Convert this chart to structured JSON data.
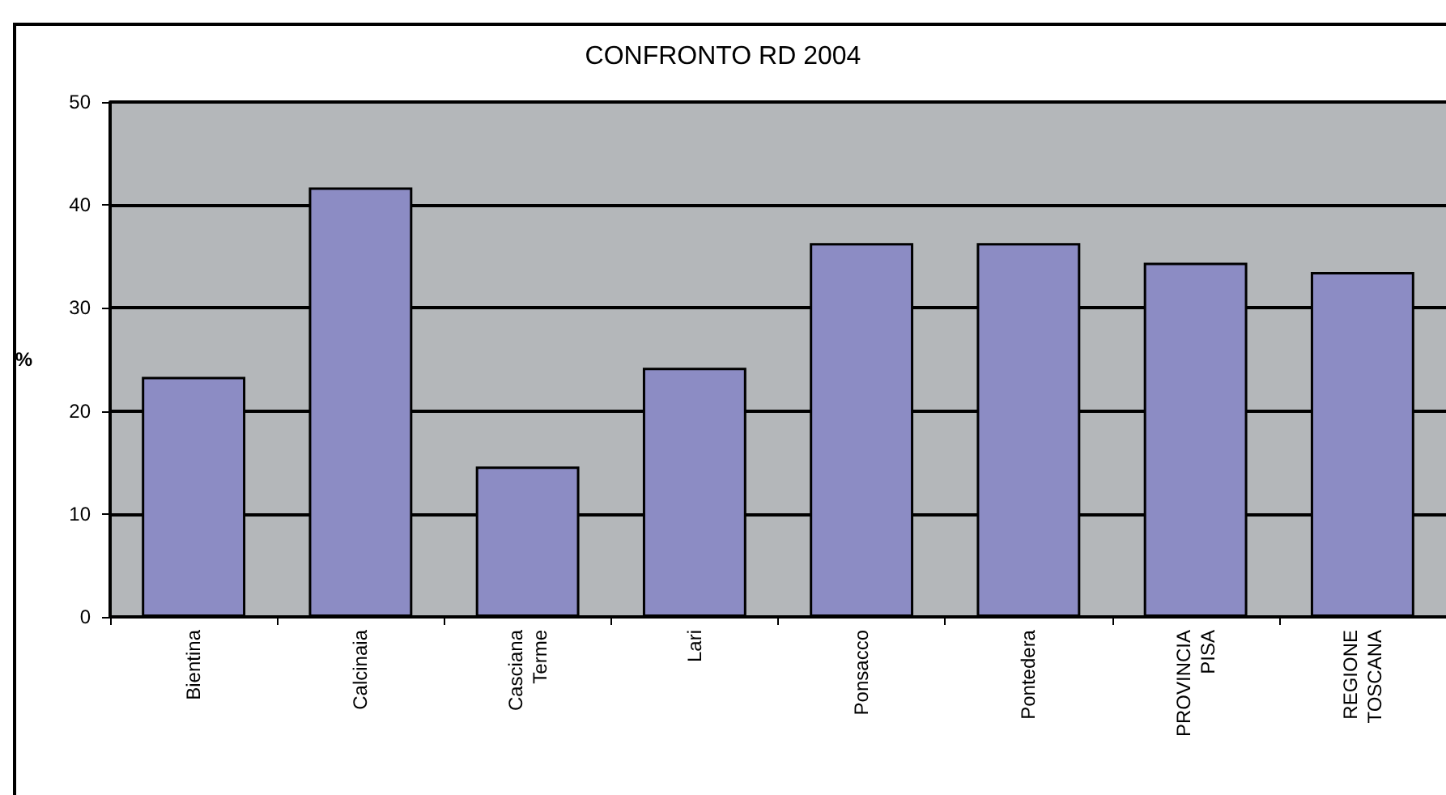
{
  "chart_data": {
    "type": "bar",
    "title": "CONFRONTO RD 2004",
    "ylabel": "%",
    "categories": [
      "Bientina",
      "Calcinaia",
      "Casciana Terme",
      "Lari",
      "Ponsacco",
      "Pontedera",
      "PROVINCIA PISA",
      "REGIONE TOSCANA"
    ],
    "values": [
      23.3,
      41.7,
      14.6,
      24.2,
      36.3,
      36.3,
      34.4,
      33.5
    ],
    "color": "#8c8cc4",
    "ylim": [
      0,
      50
    ],
    "yticks": [
      0,
      10,
      20,
      30,
      40,
      50
    ],
    "grid": "y"
  }
}
